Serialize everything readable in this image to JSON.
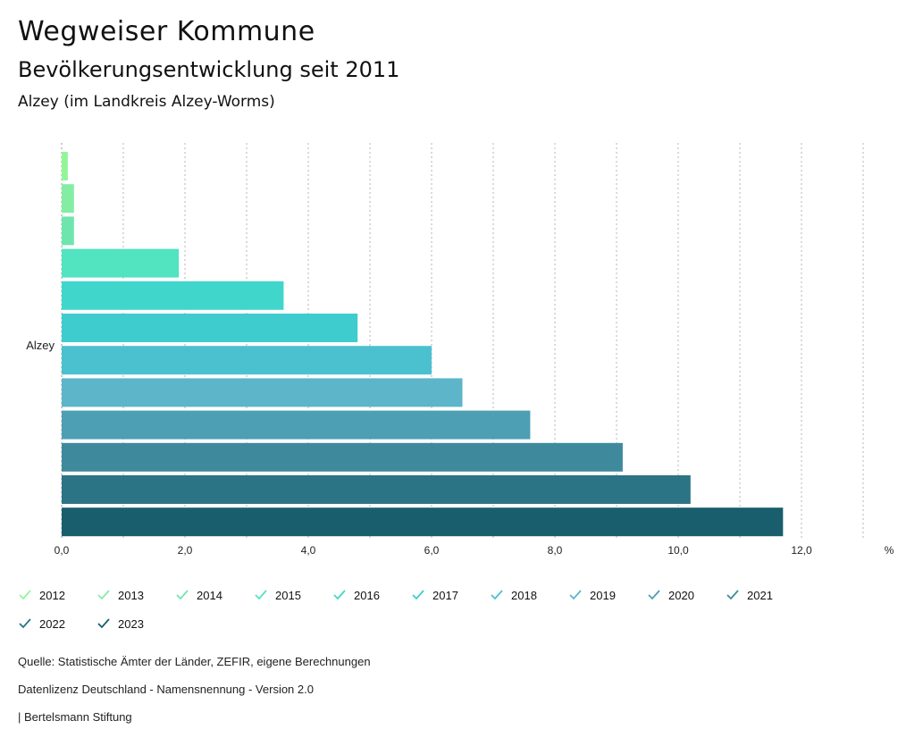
{
  "header": {
    "title": "Wegweiser Kommune",
    "subtitle": "Bevölkerungsentwicklung seit 2011",
    "region": "Alzey (im Landkreis Alzey-Worms)"
  },
  "chart_data": {
    "type": "bar",
    "orientation": "horizontal",
    "categories": [
      "Alzey"
    ],
    "series": [
      {
        "name": "2012",
        "values": [
          0.1
        ],
        "color": "#93F59A"
      },
      {
        "name": "2013",
        "values": [
          0.2
        ],
        "color": "#84EDA4"
      },
      {
        "name": "2014",
        "values": [
          0.2
        ],
        "color": "#6FE5AE"
      },
      {
        "name": "2015",
        "values": [
          1.9
        ],
        "color": "#52E3C0"
      },
      {
        "name": "2016",
        "values": [
          3.6
        ],
        "color": "#41D6CB"
      },
      {
        "name": "2017",
        "values": [
          4.8
        ],
        "color": "#3FCCCF"
      },
      {
        "name": "2018",
        "values": [
          6.0
        ],
        "color": "#4BC1CF"
      },
      {
        "name": "2019",
        "values": [
          6.5
        ],
        "color": "#5CB5C8"
      },
      {
        "name": "2020",
        "values": [
          7.6
        ],
        "color": "#4D9FB3"
      },
      {
        "name": "2021",
        "values": [
          9.1
        ],
        "color": "#3E8A9C"
      },
      {
        "name": "2022",
        "values": [
          10.2
        ],
        "color": "#2B7485"
      },
      {
        "name": "2023",
        "values": [
          11.7
        ],
        "color": "#185E6D"
      }
    ],
    "xlim": [
      0,
      13
    ],
    "xticks": [
      0,
      2,
      4,
      6,
      8,
      10,
      12
    ],
    "xtick_labels": [
      "0,0",
      "2,0",
      "4,0",
      "6,0",
      "8,0",
      "10,0",
      "12,0"
    ],
    "unit": "%",
    "grid": true
  },
  "footer": {
    "source": "Quelle: Statistische Ämter der Länder, ZEFIR, eigene Berechnungen",
    "license": "Datenlizenz Deutschland - Namensnennung - Version 2.0",
    "publisher": "| Bertelsmann Stiftung"
  }
}
